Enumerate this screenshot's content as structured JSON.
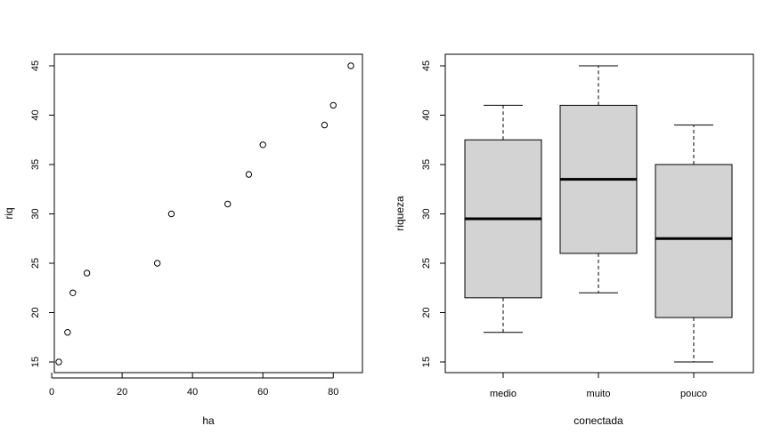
{
  "chart_data": [
    {
      "type": "scatter",
      "title": "",
      "xlabel": "ha",
      "ylabel": "riq",
      "xlim": [
        0,
        88
      ],
      "ylim": [
        14,
        46
      ],
      "xticks": [
        0,
        20,
        40,
        60,
        80
      ],
      "yticks": [
        15,
        20,
        25,
        30,
        35,
        40,
        45
      ],
      "x": [
        2,
        4.5,
        6,
        10,
        30,
        34,
        50,
        56,
        60,
        77.5,
        80,
        85
      ],
      "y": [
        15,
        18,
        22,
        24,
        25,
        30,
        31,
        34,
        37,
        39,
        41,
        45
      ]
    },
    {
      "type": "box",
      "title": "",
      "xlabel": "conectada",
      "ylabel": "riqueza",
      "ylim": [
        14,
        46
      ],
      "yticks": [
        15,
        20,
        25,
        30,
        35,
        40,
        45
      ],
      "categories": [
        "medio",
        "muito",
        "pouco"
      ],
      "boxes": [
        {
          "min": 18,
          "q1": 21.5,
          "median": 29.5,
          "q3": 37.5,
          "max": 41
        },
        {
          "min": 22,
          "q1": 26,
          "median": 33.5,
          "q3": 41,
          "max": 45
        },
        {
          "min": 15,
          "q1": 19.5,
          "median": 27.5,
          "q3": 35,
          "max": 39
        }
      ]
    }
  ]
}
